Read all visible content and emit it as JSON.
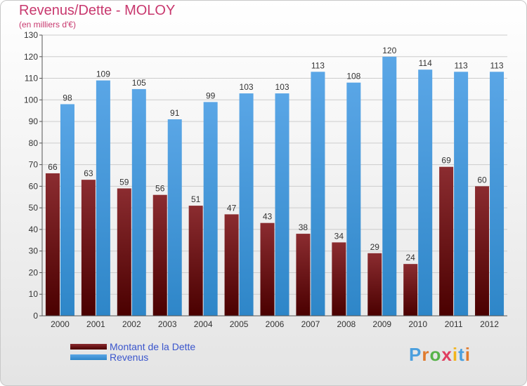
{
  "title": "Revenus/Dette - MOLOY",
  "subtitle": "(en milliers d'€)",
  "logo": {
    "text": "Proxiti",
    "letter_colors": [
      "#4a9fde",
      "#e07a2c",
      "#57b34a",
      "#e03d5f",
      "#f2b51c",
      "#4a9fde",
      "#e07a2c"
    ]
  },
  "colors": {
    "dette_top": "#8b2c30",
    "dette_bottom": "#4a0000",
    "revenus_top": "#5aa6e6",
    "revenus_bottom": "#2e86c8",
    "axis": "#555555",
    "grid": "#cccccc"
  },
  "legend": {
    "dette": "Montant de la Dette",
    "revenus": "Revenus"
  },
  "chart_data": {
    "type": "bar",
    "title": "Revenus/Dette - MOLOY",
    "subtitle": "(en milliers d'€)",
    "categories": [
      "2000",
      "2001",
      "2002",
      "2003",
      "2004",
      "2005",
      "2006",
      "2007",
      "2008",
      "2009",
      "2010",
      "2011",
      "2012"
    ],
    "series": [
      {
        "name": "Montant de la Dette",
        "values": [
          66,
          63,
          59,
          56,
          51,
          47,
          43,
          38,
          34,
          29,
          24,
          69,
          60
        ]
      },
      {
        "name": "Revenus",
        "values": [
          98,
          109,
          105,
          91,
          99,
          103,
          103,
          113,
          108,
          120,
          114,
          113,
          113
        ]
      }
    ],
    "ylim": [
      0,
      130
    ],
    "yticks": [
      0,
      10,
      20,
      30,
      40,
      50,
      60,
      70,
      80,
      90,
      100,
      110,
      120,
      130
    ],
    "grid": true,
    "legend_position": "bottom-left"
  }
}
